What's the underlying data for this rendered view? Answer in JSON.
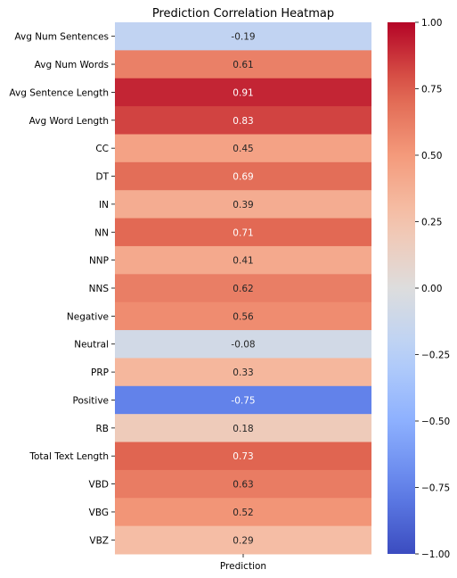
{
  "chart_data": {
    "type": "heatmap",
    "title": "Prediction Correlation Heatmap",
    "columns": [
      "Prediction"
    ],
    "rows": [
      "Avg Num Sentences",
      "Avg Num Words",
      "Avg Sentence Length",
      "Avg Word Length",
      "CC",
      "DT",
      "IN",
      "NN",
      "NNP",
      "NNS",
      "Negative",
      "Neutral",
      "PRP",
      "Positive",
      "RB",
      "Total Text Length",
      "VBD",
      "VBG",
      "VBZ"
    ],
    "values": [
      -0.19,
      0.61,
      0.91,
      0.83,
      0.45,
      0.69,
      0.39,
      0.71,
      0.41,
      0.62,
      0.56,
      -0.08,
      0.33,
      -0.75,
      0.18,
      0.73,
      0.63,
      0.52,
      0.29
    ],
    "value_labels": [
      "-0.19",
      "0.61",
      "0.91",
      "0.83",
      "0.45",
      "0.69",
      "0.39",
      "0.71",
      "0.41",
      "0.62",
      "0.56",
      "-0.08",
      "0.33",
      "-0.75",
      "0.18",
      "0.73",
      "0.63",
      "0.52",
      "0.29"
    ],
    "colormap": "coolwarm",
    "vmin": -1.0,
    "vmax": 1.0,
    "colorbar_ticks": [
      1.0,
      0.75,
      0.5,
      0.25,
      0.0,
      -0.25,
      -0.5,
      -0.75,
      -1.0
    ],
    "colorbar_tick_labels": [
      "1.00",
      "0.75",
      "0.50",
      "0.25",
      "0.00",
      "−0.25",
      "−0.50",
      "−0.75",
      "−1.00"
    ]
  }
}
